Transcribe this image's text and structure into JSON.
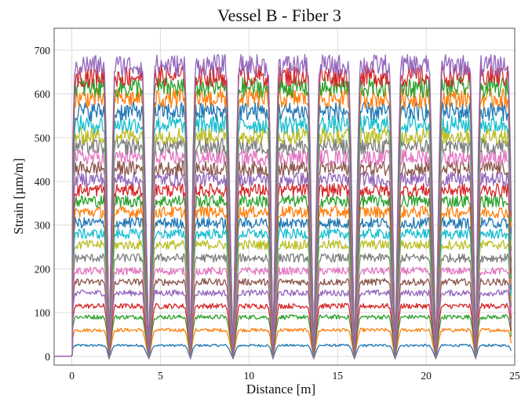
{
  "chart_data": {
    "type": "line",
    "title": "Vessel B - Fiber 3",
    "xlabel": "Distance [m]",
    "ylabel": "Strain [µm/m]",
    "xlim": [
      -1,
      25
    ],
    "ylim": [
      -20,
      750
    ],
    "x_ticks": [
      0,
      5,
      10,
      15,
      20,
      25
    ],
    "y_ticks": [
      0,
      100,
      200,
      300,
      400,
      500,
      600,
      700
    ],
    "grid": true,
    "legend": "none",
    "segments": [
      {
        "start": 0.05,
        "end": 1.95
      },
      {
        "start": 2.3,
        "end": 4.1
      },
      {
        "start": 4.55,
        "end": 6.5
      },
      {
        "start": 6.85,
        "end": 8.85
      },
      {
        "start": 9.3,
        "end": 11.2
      },
      {
        "start": 11.55,
        "end": 13.45
      },
      {
        "start": 13.85,
        "end": 15.75
      },
      {
        "start": 16.15,
        "end": 18.05
      },
      {
        "start": 18.45,
        "end": 20.3
      },
      {
        "start": 20.75,
        "end": 22.6
      },
      {
        "start": 22.95,
        "end": 24.75
      }
    ],
    "dips": [
      2.1,
      4.35,
      6.7,
      9.1,
      11.35,
      13.65,
      15.95,
      18.25,
      20.55,
      22.8
    ],
    "dip_value": -5,
    "series_levels": [
      25,
      60,
      90,
      115,
      145,
      170,
      195,
      225,
      255,
      280,
      305,
      330,
      355,
      380,
      405,
      430,
      455,
      480,
      505,
      530,
      560,
      590,
      615,
      640,
      665
    ],
    "colors": [
      "#1f77b4",
      "#ff7f0e",
      "#2ca02c",
      "#d62728",
      "#9467bd",
      "#8c564b",
      "#e377c2",
      "#7f7f7f",
      "#bcbd22",
      "#17becf"
    ]
  }
}
